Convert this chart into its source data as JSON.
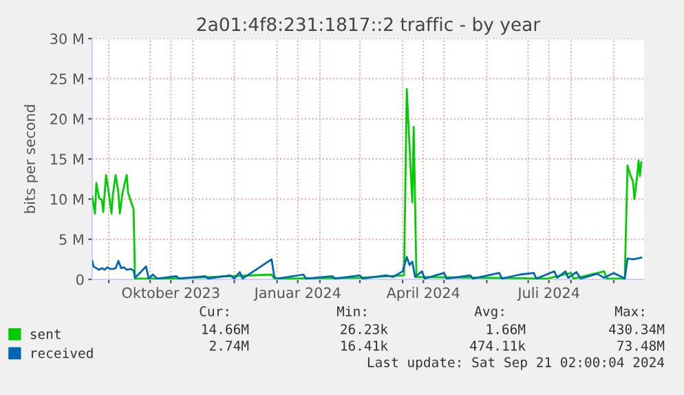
{
  "chart_data": {
    "type": "line",
    "title": "2a01:4f8:231:1817::2 traffic - by year",
    "ylabel": "bits per second",
    "xlim": [
      "2023-08-20",
      "2024-09-23"
    ],
    "xticks": [
      {
        "value": "2023-09-01",
        "label": null
      },
      {
        "value": "2023-10-01",
        "label": null
      },
      {
        "value": "2023-10-16",
        "label": "Oktober 2023"
      },
      {
        "value": "2023-11-01",
        "label": null
      },
      {
        "value": "2023-12-01",
        "label": null
      },
      {
        "value": "2024-01-01",
        "label": null
      },
      {
        "value": "2024-01-16",
        "label": "Januar 2024"
      },
      {
        "value": "2024-02-01",
        "label": null
      },
      {
        "value": "2024-03-01",
        "label": null
      },
      {
        "value": "2024-04-01",
        "label": null
      },
      {
        "value": "2024-04-16",
        "label": "April 2024"
      },
      {
        "value": "2024-05-01",
        "label": null
      },
      {
        "value": "2024-06-01",
        "label": null
      },
      {
        "value": "2024-07-01",
        "label": null
      },
      {
        "value": "2024-07-16",
        "label": "Juli 2024"
      },
      {
        "value": "2024-08-01",
        "label": null
      },
      {
        "value": "2024-09-01",
        "label": null
      }
    ],
    "ylim": [
      0,
      30
    ],
    "yticks": [
      0,
      {
        "value": 5,
        "label": "5 M"
      },
      {
        "value": 10,
        "label": "10 M"
      },
      {
        "value": 15,
        "label": "15 M"
      },
      {
        "value": 20,
        "label": "20 M"
      },
      {
        "value": 25,
        "label": "25 M"
      },
      {
        "value": 30,
        "label": "30 M"
      }
    ],
    "grid": true,
    "legend": "bottom left",
    "line_style": "solid",
    "marker": "none",
    "series": [
      {
        "name": "sent",
        "color": "#00cc00",
        "x": [
          "2023-08-20",
          "2023-08-22",
          "2023-08-23",
          "2023-08-25",
          "2023-08-27",
          "2023-08-28",
          "2023-08-30",
          "2023-09-01",
          "2023-09-03",
          "2023-09-04",
          "2023-09-06",
          "2023-09-08",
          "2023-09-09",
          "2023-09-11",
          "2023-09-14",
          "2023-09-15",
          "2023-09-19",
          "2023-09-20",
          "2023-10-15",
          "2023-12-28",
          "2023-12-30",
          "2024-03-01",
          "2024-04-02",
          "2024-04-04",
          "2024-04-06",
          "2024-04-08",
          "2024-04-09",
          "2024-04-11",
          "2024-07-15",
          "2024-08-01",
          "2024-08-03",
          "2024-08-25",
          "2024-08-27",
          "2024-09-09",
          "2024-09-11",
          "2024-09-13",
          "2024-09-15",
          "2024-09-16",
          "2024-09-18",
          "2024-09-19",
          "2024-09-20",
          "2024-09-21"
        ],
        "values": [
          10.3,
          8.2,
          12.0,
          10.1,
          9.9,
          8.4,
          13.0,
          10.8,
          8.2,
          10.6,
          13.0,
          10.8,
          8.2,
          10.8,
          13.0,
          10.8,
          8.7,
          0.1,
          0.1,
          0.6,
          0.1,
          0.2,
          0.5,
          23.7,
          16.5,
          9.6,
          19.0,
          0.3,
          0.1,
          0.8,
          0.1,
          1.0,
          0.1,
          0.1,
          14.2,
          13.0,
          12.2,
          10.0,
          12.9,
          14.8,
          12.9,
          14.6
        ]
      },
      {
        "name": "received",
        "color": "#0066b3",
        "x": [
          "2023-08-20",
          "2023-08-21",
          "2023-08-23",
          "2023-08-25",
          "2023-08-27",
          "2023-08-29",
          "2023-08-31",
          "2023-09-02",
          "2023-09-04",
          "2023-09-06",
          "2023-09-08",
          "2023-09-10",
          "2023-09-12",
          "2023-09-14",
          "2023-09-17",
          "2023-09-19",
          "2023-09-20",
          "2023-09-23",
          "2023-09-28",
          "2023-09-30",
          "2023-10-03",
          "2023-10-06",
          "2023-10-20",
          "2023-10-22",
          "2023-11-10",
          "2023-11-12",
          "2023-11-28",
          "2023-12-01",
          "2023-12-05",
          "2023-12-07",
          "2023-12-28",
          "2023-12-30",
          "2024-01-01",
          "2024-01-20",
          "2024-01-22",
          "2024-02-10",
          "2024-02-12",
          "2024-03-01",
          "2024-03-03",
          "2024-03-20",
          "2024-03-25",
          "2024-04-01",
          "2024-04-04",
          "2024-04-06",
          "2024-04-08",
          "2024-04-10",
          "2024-04-15",
          "2024-04-17",
          "2024-05-01",
          "2024-05-03",
          "2024-05-20",
          "2024-05-22",
          "2024-06-10",
          "2024-06-12",
          "2024-06-25",
          "2024-07-05",
          "2024-07-07",
          "2024-07-20",
          "2024-07-22",
          "2024-07-28",
          "2024-07-30",
          "2024-08-05",
          "2024-08-08",
          "2024-08-20",
          "2024-08-25",
          "2024-09-01",
          "2024-09-09",
          "2024-09-11",
          "2024-09-15",
          "2024-09-21"
        ],
        "values": [
          2.3,
          1.6,
          1.4,
          1.2,
          1.4,
          1.2,
          1.5,
          1.3,
          1.3,
          1.4,
          2.3,
          1.4,
          1.5,
          1.2,
          1.3,
          1.1,
          0.2,
          0.7,
          1.6,
          0.1,
          0.6,
          0.1,
          0.4,
          0.1,
          0.4,
          0.1,
          0.5,
          0.1,
          0.9,
          0.1,
          2.5,
          0.3,
          0.1,
          0.6,
          0.1,
          0.4,
          0.1,
          0.5,
          0.1,
          0.5,
          0.3,
          1.0,
          2.8,
          1.8,
          2.2,
          0.3,
          1.0,
          0.1,
          0.8,
          0.1,
          0.5,
          0.1,
          0.8,
          0.1,
          0.6,
          0.8,
          0.1,
          1.0,
          0.2,
          1.0,
          0.2,
          0.9,
          0.1,
          0.7,
          0.2,
          0.8,
          0.1,
          2.6,
          2.5,
          2.7
        ]
      }
    ],
    "annotations": [
      "Cur:",
      "Min:",
      "Avg:",
      "Max:",
      "14.66M",
      "26.23k",
      "1.66M",
      "430.34M",
      "2.74M",
      "16.41k",
      "474.11k",
      "73.48M",
      "Last update: Sat Sep 21 02:00:04 2024"
    ]
  }
}
